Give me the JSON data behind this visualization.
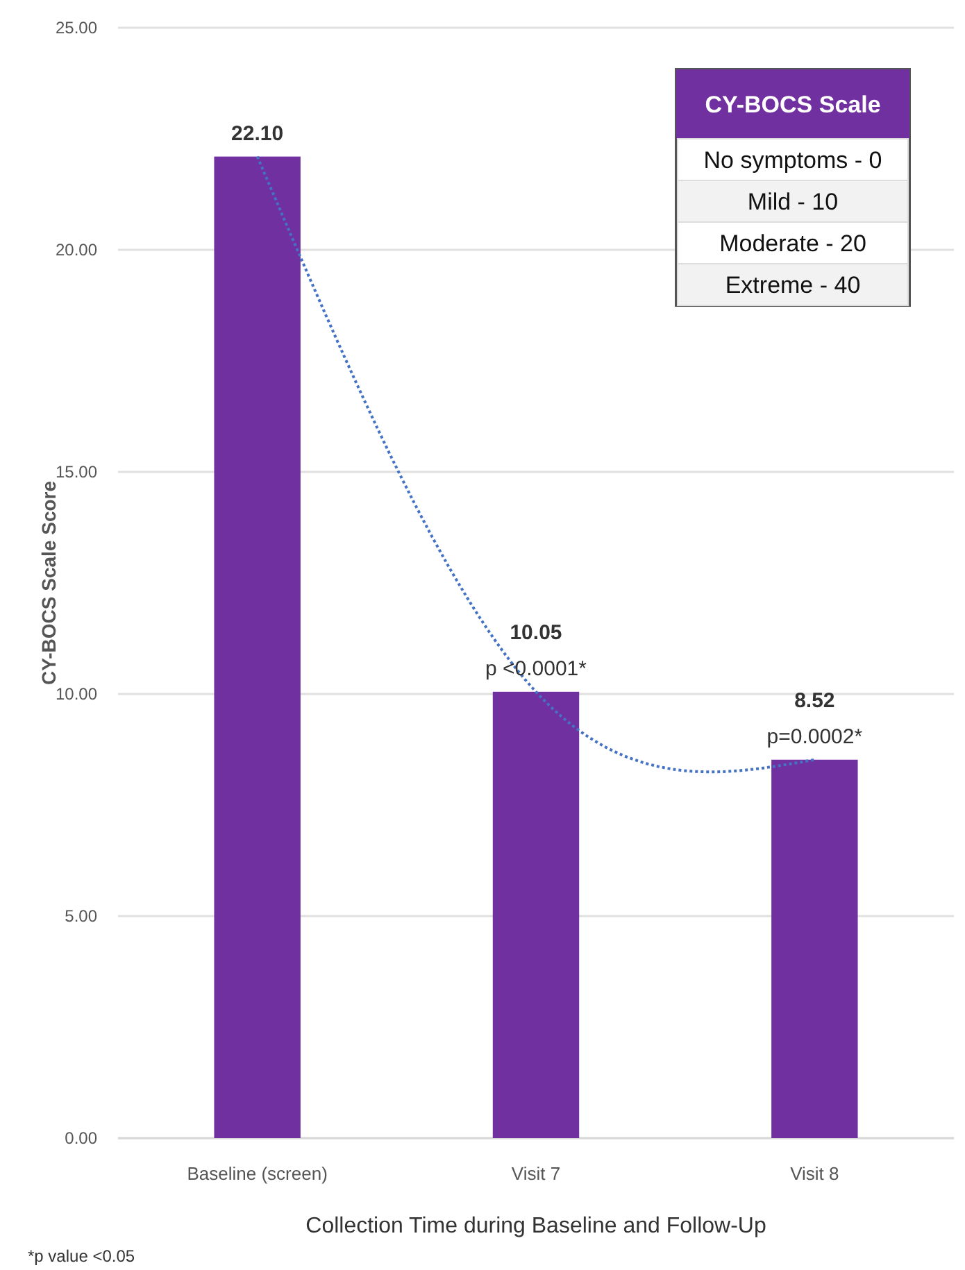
{
  "chart_data": {
    "type": "bar",
    "xlabel": "Collection Time during Baseline and Follow-Up",
    "ylabel": "CY-BOCS Scale Score",
    "categories": [
      "Baseline (screen)",
      "Visit 7",
      "Visit 8"
    ],
    "series": [
      {
        "color": "#7030a0",
        "values": [
          22.1,
          10.05,
          8.52
        ],
        "value_labels": [
          "22.10",
          "10.05",
          "8.52"
        ]
      },
      {
        "type": "line",
        "color": "#4472c4",
        "line_style": "dotted",
        "marker": "none",
        "values": [
          22.1,
          10.05,
          8.52
        ]
      }
    ],
    "ylim": [
      0,
      25
    ],
    "yticks": [
      {
        "value": 0,
        "label": "0.00"
      },
      {
        "value": 5,
        "label": "5.00"
      },
      {
        "value": 10,
        "label": "10.00"
      },
      {
        "value": 15,
        "label": "15.00"
      },
      {
        "value": 20,
        "label": "20.00"
      },
      {
        "value": 25,
        "label": "25.00"
      }
    ],
    "grid": "y",
    "annotations": [
      "CY-BOCS Scale",
      "No symptoms - 0",
      "Mild - 10",
      "Moderate - 20",
      "Extreme - 40",
      {
        "text": "p <0.0001*",
        "x": "Visit 7",
        "y": 10.05
      },
      {
        "text": "p=0.0002*",
        "x": "Visit 8",
        "y": 8.52
      },
      "*p value <0.05"
    ]
  }
}
